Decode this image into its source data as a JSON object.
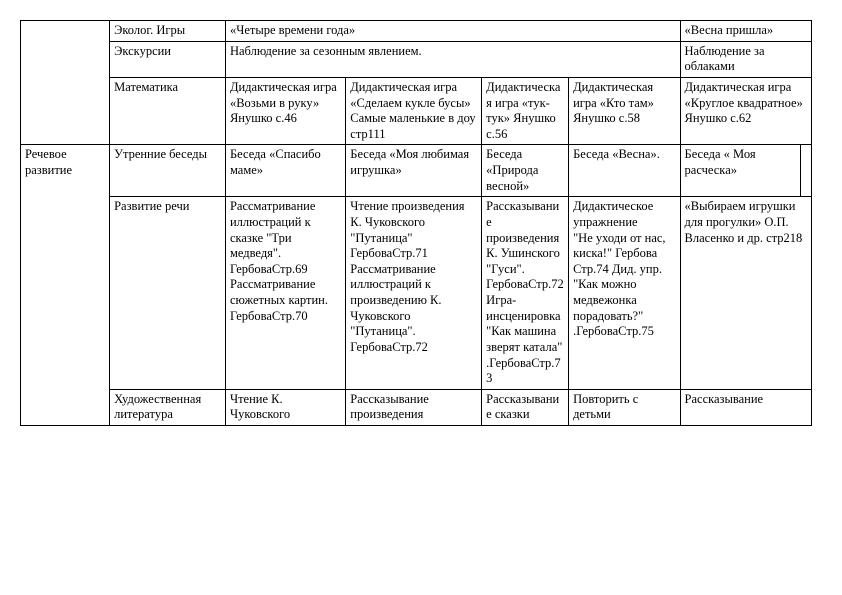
{
  "table": {
    "rows": [
      {
        "cells": [
          {
            "text": "",
            "rowspan": 3
          },
          {
            "text": "Эколог. Игры"
          },
          {
            "text": "«Четыре времени года»",
            "colspan": 4
          },
          {
            "text": "«Весна пришла»",
            "colspan": 2
          }
        ]
      },
      {
        "cells": [
          {
            "text": "Экскурсии"
          },
          {
            "text": "Наблюдение за сезонным явлением.",
            "colspan": 4
          },
          {
            "text": "Наблюдение за облаками",
            "colspan": 2
          }
        ]
      },
      {
        "cells": [
          {
            "text": "Математика"
          },
          {
            "text": "Дидактическая игра «Возьми в руку»  Янушко с.46"
          },
          {
            "text": "Дидактическая игра «Сделаем кукле бусы»\nСамые маленькие в доу стр111"
          },
          {
            "text": "Дидактическая игра «тук-тук» Янушко с.56"
          },
          {
            "text": "Дидактическая игра «Кто там» Янушко с.58"
          },
          {
            "text": "Дидактическая игра «Круглое квадратное» Янушко с.62",
            "colspan": 2
          }
        ]
      },
      {
        "cells": [
          {
            "text": "Речевое развитие",
            "rowspan": 3
          },
          {
            "text": "Утренние беседы"
          },
          {
            "text": "Беседа «Спасибо маме»"
          },
          {
            "text": "Беседа «Моя любимая игрушка»"
          },
          {
            "text": "Беседа «Природа весной»"
          },
          {
            "text": "Беседа «Весна»."
          },
          {
            "text": "Беседа « Моя расческа»"
          },
          {
            "text": ""
          }
        ]
      },
      {
        "cells": [
          {
            "text": "Развитие речи"
          },
          {
            "text": "Рассматривание иллюстраций к сказке \"Три медведя\". ГербоваСтр.69 Рассматривание сюжетных картин. ГербоваСтр.70"
          },
          {
            "text": "Чтение произведения К. Чуковского \"Путаница\" ГербоваСтр.71 Рассматривание иллюстраций к произведению К. Чуковского \"Путаница\". ГербоваСтр.72"
          },
          {
            "text": "Рассказывание произведения К. Ушинского \"Гуси\". ГербоваСтр.72\nИгра-инсценировка \"Как машина зверят катала\" .ГербоваСтр.73"
          },
          {
            "text": "Дидактическое упражнение\n\"Не уходи от нас,\nкиска!\" Гербова Стр.74   Дид. упр.\n\"Как можно медвежонка порадовать?\" .ГербоваСтр.75"
          },
          {
            "text": "«Выбираем игрушки для прогулки» О.П. Власенко и др. стр218",
            "colspan": 2
          }
        ]
      },
      {
        "cells": [
          {
            "text": "Художественная литература"
          },
          {
            "text": "Чтение К. Чуковского"
          },
          {
            "text": "Рассказывание произведения"
          },
          {
            "text": "Рассказывание сказки"
          },
          {
            "text": "Повторить с детьми"
          },
          {
            "text": "Рассказывание",
            "colspan": 2
          }
        ]
      }
    ]
  }
}
